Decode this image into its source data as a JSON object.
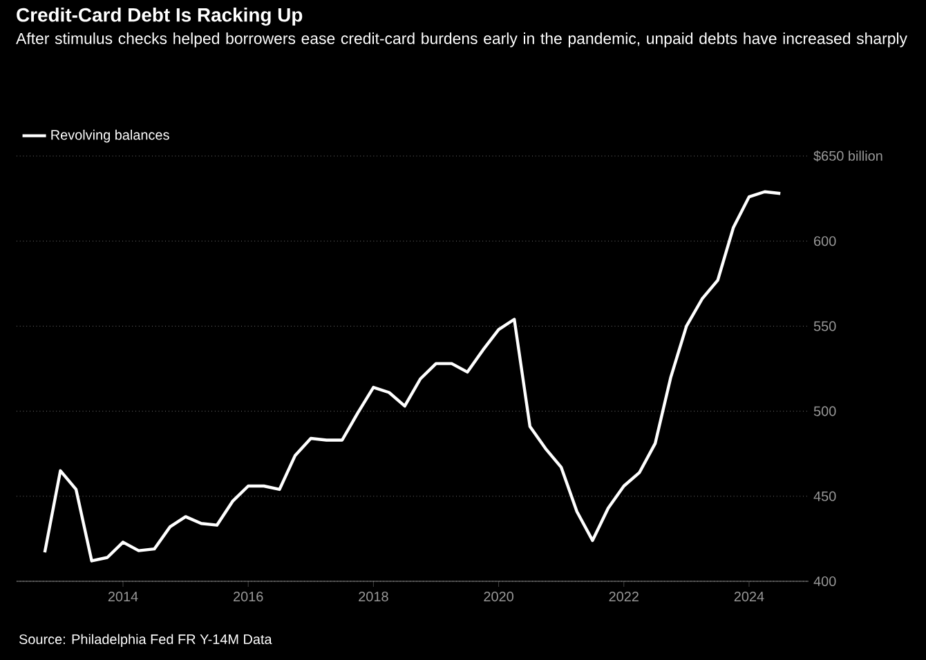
{
  "chart_data": {
    "type": "line",
    "title": "Credit-Card Debt Is Racking Up",
    "subtitle": "After stimulus checks helped borrowers ease credit-card burdens early in the pandemic, unpaid debts have increased sharply",
    "x": [
      2012.75,
      2013,
      2013.25,
      2013.5,
      2013.75,
      2014,
      2014.25,
      2014.5,
      2014.75,
      2015,
      2015.25,
      2015.5,
      2015.75,
      2016,
      2016.25,
      2016.5,
      2016.75,
      2017,
      2017.25,
      2017.5,
      2017.75,
      2018,
      2018.25,
      2018.5,
      2018.75,
      2019,
      2019.25,
      2019.5,
      2019.75,
      2020,
      2020.25,
      2020.5,
      2020.75,
      2021,
      2021.25,
      2021.5,
      2021.75,
      2022,
      2022.25,
      2022.5,
      2022.75,
      2023,
      2023.25,
      2023.5,
      2023.75,
      2024,
      2024.25,
      2024.5
    ],
    "series": [
      {
        "name": "Revolving balances",
        "color": "#ffffff",
        "values": [
          417,
          465,
          454,
          412,
          414,
          423,
          418,
          419,
          432,
          438,
          434,
          433,
          447,
          456,
          456,
          454,
          474,
          484,
          483,
          483,
          499,
          514,
          511,
          503,
          519,
          528,
          528,
          523,
          536,
          548,
          554,
          491,
          478,
          467,
          441,
          424,
          443,
          456,
          464,
          481,
          520,
          550,
          566,
          577,
          608,
          626,
          629,
          628
        ]
      }
    ],
    "xlim": [
      2012.3,
      2024.95
    ],
    "ylim": [
      400,
      650
    ],
    "xticks": [
      2014,
      2016,
      2018,
      2020,
      2022,
      2024
    ],
    "yticks": [
      400,
      450,
      500,
      550,
      600,
      {
        "value": 650,
        "label": "$650 billion"
      }
    ],
    "grid": "y",
    "legend": "top left",
    "line_style": "solid",
    "marker": "none",
    "annotations": [
      "Source: Philadelphia Fed FR Y-14M Data"
    ]
  }
}
